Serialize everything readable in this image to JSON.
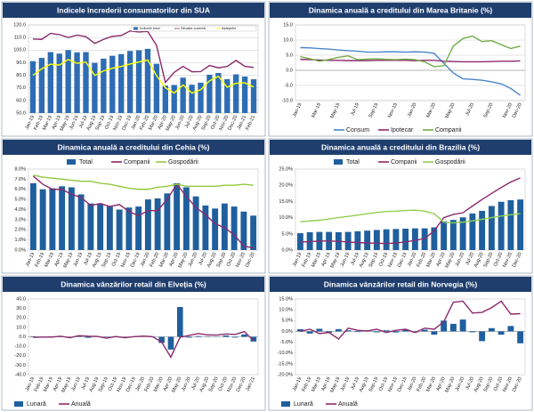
{
  "chart_data": [
    {
      "type": "combo",
      "title": "Indicele încrederii consumatorilor din SUA",
      "categories": [
        "Jan-19",
        "Feb-19",
        "Mar-19",
        "Apr-19",
        "May-19",
        "Jun-19",
        "Jul-19",
        "Aug-19",
        "Sep-19",
        "Oct-19",
        "Nov-19",
        "Dec-19",
        "Jan-20",
        "Feb-20",
        "Mar-20",
        "Apr-20",
        "May-20",
        "Jun-20",
        "Jul-20",
        "Aug-20",
        "Sep-20",
        "Oct-20",
        "Nov-20",
        "Dec-20",
        "Jan-21",
        "Feb-21"
      ],
      "series": [
        {
          "name": "Indicele total",
          "type": "bar",
          "color": "#2e6db4",
          "values": [
            91.2,
            93.8,
            98.4,
            97.2,
            100.0,
            98.2,
            98.4,
            89.8,
            93.2,
            95.5,
            96.8,
            99.3,
            99.8,
            101.0,
            89.1,
            71.8,
            72.3,
            78.1,
            72.5,
            74.1,
            80.4,
            81.8,
            76.9,
            80.7,
            79.0,
            76.8
          ]
        },
        {
          "name": "Situația curentă",
          "type": "line",
          "color": "#8b2a6b",
          "values": [
            108.8,
            108.5,
            113.3,
            112.3,
            110.0,
            111.9,
            110.7,
            105.3,
            108.5,
            110.9,
            111.6,
            115.2,
            114.4,
            114.8,
            103.7,
            74.3,
            82.3,
            87.1,
            82.8,
            82.9,
            87.8,
            85.9,
            87.0,
            91.8,
            87.1,
            86.2
          ]
        },
        {
          "name": "Așteptări",
          "type": "line",
          "color": "#ffff00",
          "values": [
            79.9,
            85.1,
            88.8,
            88.1,
            92.5,
            89.5,
            90.5,
            79.9,
            83.4,
            85.6,
            87.0,
            88.9,
            90.5,
            92.1,
            79.7,
            70.1,
            65.9,
            72.3,
            65.9,
            68.5,
            75.6,
            79.2,
            70.5,
            73.6,
            74.0,
            70.7
          ]
        }
      ],
      "ylim": [
        50,
        120
      ],
      "yticks": [
        {
          "value": 50,
          "label": "50.0"
        },
        {
          "value": 60,
          "label": "60.0"
        },
        {
          "value": 70,
          "label": "70.0"
        },
        {
          "value": 80,
          "label": "80.0"
        },
        {
          "value": 90,
          "label": "90.0"
        },
        {
          "value": 100,
          "label": "100.0"
        },
        {
          "value": 110,
          "label": "110.0"
        },
        {
          "value": 120,
          "label": "120.0"
        }
      ],
      "grid": true,
      "legend": "top-right"
    },
    {
      "type": "line",
      "title": "Dinamica anuală a creditului din Marea Britanie (%)",
      "categories": [
        "Jan-19",
        null,
        "Mar-19",
        null,
        "May-19",
        null,
        "Jul-19",
        null,
        "Sep-19",
        null,
        "Nov-19",
        null,
        "Jan-20",
        null,
        "Mar-20",
        null,
        "May-20",
        null,
        "Jul-20",
        null,
        "Sep-20",
        null,
        "Nov-20",
        "Dec-20"
      ],
      "series": [
        {
          "name": "Consum",
          "type": "line",
          "color": "#4a86c8",
          "values": [
            7.5,
            7.4,
            7.2,
            7.0,
            6.7,
            6.5,
            6.3,
            6.0,
            6.0,
            6.1,
            6.1,
            6.0,
            6.1,
            6.0,
            5.6,
            2.3,
            -0.9,
            -2.8,
            -3.0,
            -3.3,
            -3.8,
            -4.5,
            -6.0,
            -8.3
          ]
        },
        {
          "name": "Ipotecar",
          "type": "line",
          "color": "#8b2a6b",
          "values": [
            3.6,
            3.5,
            3.4,
            3.3,
            3.3,
            3.2,
            3.2,
            3.2,
            3.3,
            3.3,
            3.3,
            3.3,
            3.2,
            3.3,
            3.3,
            3.0,
            2.9,
            2.8,
            2.8,
            2.8,
            2.9,
            3.0,
            3.0,
            3.1
          ]
        },
        {
          "name": "Companii",
          "type": "line",
          "color": "#70ad47",
          "values": [
            4.5,
            3.8,
            3.0,
            3.6,
            4.3,
            4.8,
            3.5,
            3.7,
            3.8,
            3.6,
            3.5,
            3.7,
            3.5,
            2.8,
            1.2,
            1.5,
            8.0,
            10.5,
            11.3,
            9.5,
            9.8,
            8.5,
            7.2,
            8.0
          ]
        }
      ],
      "ylim": [
        -10,
        15
      ],
      "yticks": [
        {
          "value": -10,
          "label": "-10.0"
        },
        {
          "value": -5,
          "label": "-5.0"
        },
        {
          "value": 0,
          "label": "0.0"
        },
        {
          "value": 5,
          "label": "5.0"
        },
        {
          "value": 10,
          "label": "10.0"
        },
        {
          "value": 15,
          "label": "15.0"
        }
      ],
      "grid": true,
      "legend": "bottom"
    },
    {
      "type": "combo",
      "title": "Dinamica anuală a creditului din Cehia (%)",
      "categories": [
        "Jan-19",
        "Feb-19",
        "Mar-19",
        "Apr-19",
        "May-19",
        "Jun-19",
        "Jul-19",
        "Aug-19",
        "Sep-19",
        "Oct-19",
        "Nov-19",
        "Dec-19",
        "Jan-20",
        "Feb-20",
        "Mar-20",
        "Apr-20",
        "May-20",
        "Jun-20",
        "Jul-20",
        "Aug-20",
        "Sep-20",
        "Oct-20",
        "Nov-20",
        "Dec-20"
      ],
      "series": [
        {
          "name": "Total",
          "type": "bar",
          "color": "#1f5f9e",
          "values": [
            6.6,
            6.0,
            6.1,
            6.3,
            6.2,
            5.5,
            4.6,
            4.6,
            4.3,
            4.0,
            4.2,
            4.3,
            5.0,
            5.1,
            5.6,
            6.6,
            6.2,
            5.3,
            4.4,
            4.1,
            4.6,
            4.3,
            3.8,
            3.4
          ]
        },
        {
          "name": "Companii",
          "type": "line",
          "color": "#8b2a6b",
          "values": [
            7.3,
            6.5,
            6.0,
            6.0,
            5.5,
            5.2,
            4.4,
            4.6,
            4.3,
            4.5,
            3.8,
            3.4,
            3.9,
            3.9,
            5.0,
            6.5,
            5.3,
            4.2,
            3.5,
            2.6,
            2.2,
            1.5,
            0.4,
            0.2
          ]
        },
        {
          "name": "Gospodării",
          "type": "line",
          "color": "#92c83e",
          "values": [
            7.4,
            7.2,
            7.1,
            7.0,
            6.9,
            6.8,
            6.8,
            6.6,
            6.5,
            6.3,
            6.1,
            6.0,
            6.0,
            6.2,
            6.3,
            6.5,
            6.3,
            6.3,
            6.3,
            6.3,
            6.4,
            6.4,
            6.5,
            6.4
          ]
        }
      ],
      "ylim": [
        0,
        8
      ],
      "yticks": [
        {
          "value": 0,
          "label": "0.0%"
        },
        {
          "value": 1,
          "label": "1.0%"
        },
        {
          "value": 2,
          "label": "2.0%"
        },
        {
          "value": 3,
          "label": "3.0%"
        },
        {
          "value": 4,
          "label": "4.0%"
        },
        {
          "value": 5,
          "label": "5.0%"
        },
        {
          "value": 6,
          "label": "6.0%"
        },
        {
          "value": 7,
          "label": "7.0%"
        },
        {
          "value": 8,
          "label": "8.0%"
        }
      ],
      "grid": false,
      "legend": "top"
    },
    {
      "type": "combo",
      "title": "Dinamica anuală a creditului din Brazilia (%)",
      "categories": [
        "Jan-19",
        "Feb-19",
        "Mar-19",
        "Apr-19",
        "May-19",
        "Jun-19",
        "Jul-19",
        "Aug-19",
        "Sep-19",
        "Oct-19",
        "Nov-19",
        "Dec-19",
        "Jan-20",
        "Feb-20",
        "Mar-20",
        "Apr-20",
        "May-20",
        "Jun-20",
        "Jul-20",
        "Aug-20",
        "Sep-20",
        "Oct-20",
        "Nov-20",
        "Dec-20"
      ],
      "series": [
        {
          "name": "Total",
          "type": "bar",
          "color": "#1f5f9e",
          "values": [
            5.2,
            5.5,
            5.6,
            5.6,
            5.5,
            5.6,
            5.8,
            6.0,
            6.2,
            6.4,
            6.5,
            6.6,
            6.7,
            6.7,
            7.0,
            8.9,
            9.3,
            10.1,
            11.3,
            12.1,
            13.6,
            14.9,
            15.4,
            15.6
          ]
        },
        {
          "name": "Companii",
          "type": "line",
          "color": "#8b2a6b",
          "values": [
            2.5,
            2.6,
            2.8,
            2.8,
            2.7,
            2.5,
            2.3,
            2.2,
            2.1,
            2.0,
            2.2,
            2.5,
            3.0,
            3.5,
            6.0,
            10.0,
            11.0,
            11.5,
            13.6,
            15.6,
            17.5,
            19.3,
            21.0,
            22.3
          ]
        },
        {
          "name": "Gospodării",
          "type": "line",
          "color": "#92d050",
          "values": [
            8.7,
            9.0,
            9.2,
            9.6,
            10.0,
            10.4,
            10.8,
            11.2,
            11.6,
            11.9,
            12.0,
            12.2,
            12.3,
            12.0,
            11.2,
            8.6,
            8.4,
            8.6,
            9.0,
            9.5,
            10.0,
            10.5,
            10.9,
            11.2
          ]
        }
      ],
      "ylim": [
        0,
        25
      ],
      "yticks": [
        {
          "value": 0,
          "label": "0.0%"
        },
        {
          "value": 5,
          "label": "5.0%"
        },
        {
          "value": 10,
          "label": "10.0%"
        },
        {
          "value": 15,
          "label": "15.0%"
        },
        {
          "value": 20,
          "label": "20.0%"
        },
        {
          "value": 25,
          "label": "25.0%"
        }
      ],
      "grid": false,
      "legend": "top"
    },
    {
      "type": "combo",
      "title": "Dinamica vânzărilor retail din Elveția (%)",
      "categories": [
        "Jan-19",
        "Feb-19",
        "Mar-19",
        "Apr-19",
        "May-19",
        "Jun-19",
        "Jul-19",
        "Aug-19",
        "Sep-19",
        "Oct-19",
        "Nov-19",
        "Dec-19",
        "Jan-20",
        "Feb-20",
        "Mar-20",
        "Apr-20",
        "May-20",
        "Jun-20",
        "Jul-20",
        "Aug-20",
        "Sep-20",
        "Oct-20",
        "Nov-20",
        "Dec-20",
        "Jan-21"
      ],
      "series": [
        {
          "name": "Lunară",
          "type": "bar",
          "color": "#1f5f9e",
          "values": [
            0.6,
            -0.3,
            0.5,
            -0.2,
            -0.6,
            1.2,
            -1.0,
            0.4,
            -0.5,
            0.6,
            -0.4,
            0.5,
            0.2,
            -0.5,
            -6.5,
            -13.5,
            31.5,
            -0.9,
            0.8,
            -0.3,
            0.2,
            1.4,
            -0.8,
            2.5,
            -5.0
          ]
        },
        {
          "name": "Anuală",
          "type": "line",
          "color": "#8b2a6b",
          "values": [
            -0.5,
            -0.3,
            -0.3,
            0.6,
            -1.0,
            1.2,
            0.6,
            0.4,
            -1.5,
            0.3,
            -1.0,
            0.2,
            0.8,
            0.2,
            -5.5,
            -21.5,
            -0.5,
            1.5,
            3.5,
            2.0,
            1.8,
            3.0,
            2.5,
            5.5,
            -4.0
          ]
        }
      ],
      "ylim": [
        -40,
        40
      ],
      "yticks": [
        {
          "value": -40,
          "label": "-40.0"
        },
        {
          "value": -30,
          "label": "-30.0"
        },
        {
          "value": -20,
          "label": "-20.0"
        },
        {
          "value": -10,
          "label": "-10.0"
        },
        {
          "value": 0,
          "label": "0.0"
        },
        {
          "value": 10,
          "label": "10.0"
        },
        {
          "value": 20,
          "label": "20.0"
        },
        {
          "value": 30,
          "label": "30.0"
        },
        {
          "value": 40,
          "label": "40.0"
        }
      ],
      "grid": false,
      "legend": "bottom-left"
    },
    {
      "type": "combo",
      "title": "Dinamica vânzărilor retail din Norvegia (%)",
      "categories": [
        "Jan-19",
        "Feb-19",
        "Mar-19",
        "Apr-19",
        "May-19",
        "Jun-19",
        "Jul-19",
        "Aug-19",
        "Sep-19",
        "Oct-19",
        "Nov-19",
        "Dec-19",
        "Jan-20",
        "Feb-20",
        "Mar-20",
        "Apr-20",
        "May-20",
        "Jun-20",
        "Jul-20",
        "Aug-20",
        "Sep-20",
        "Oct-20",
        "Nov-20",
        "Dec-20"
      ],
      "series": [
        {
          "name": "Lunară",
          "type": "bar",
          "color": "#1f5f9e",
          "values": [
            1.0,
            -1.0,
            1.2,
            -0.6,
            1.0,
            0.5,
            -0.3,
            0.5,
            -0.4,
            0.5,
            -0.5,
            1.0,
            -0.5,
            0.8,
            -1.5,
            5.0,
            3.5,
            5.5,
            -0.4,
            -4.5,
            1.5,
            -1.5,
            2.5,
            -5.5
          ]
        },
        {
          "name": "Anuală",
          "type": "line",
          "color": "#8b2a6b",
          "values": [
            0.0,
            1.0,
            -1.0,
            -0.5,
            -3.5,
            1.5,
            0.5,
            0.2,
            1.0,
            -0.5,
            0.5,
            1.0,
            -0.5,
            1.5,
            1.0,
            4.5,
            13.5,
            14.0,
            8.5,
            8.8,
            11.0,
            14.0,
            8.0,
            8.2
          ]
        }
      ],
      "ylim": [
        -20,
        15
      ],
      "yticks": [
        {
          "value": -20,
          "label": "-20.0%"
        },
        {
          "value": -15,
          "label": "-15.0%"
        },
        {
          "value": -10,
          "label": "-10.0%"
        },
        {
          "value": -5,
          "label": "-5.0%"
        },
        {
          "value": 0,
          "label": "0.0%"
        },
        {
          "value": 5,
          "label": "5.0%"
        },
        {
          "value": 10,
          "label": "10.0%"
        },
        {
          "value": 15,
          "label": "15.0%"
        }
      ],
      "grid": false,
      "legend": "bottom-left"
    }
  ]
}
